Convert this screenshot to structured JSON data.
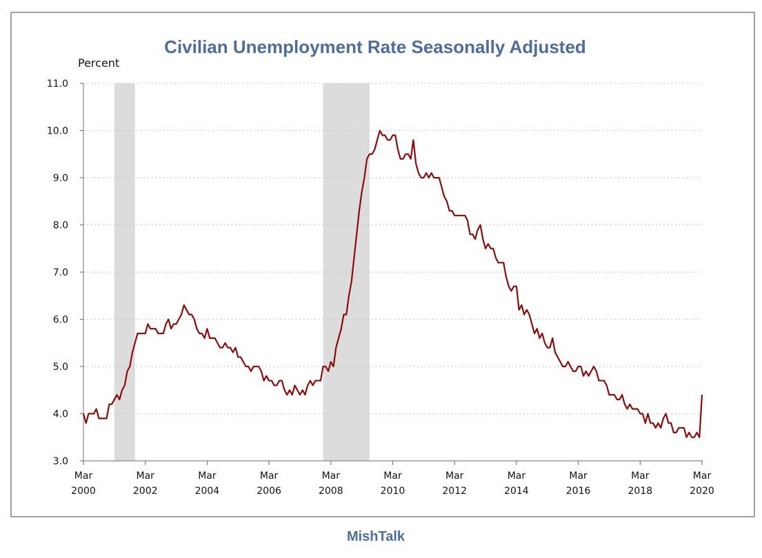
{
  "page": {
    "title": "Civilian Unemployment Rate Seasonally Adjusted",
    "brand": "MishTalk",
    "colors": {
      "title": "#4e6d9c",
      "series": "#8b0a0a",
      "recession": "#dcdcdc",
      "grid": "#bdbdbd"
    }
  },
  "chart_data": {
    "type": "line",
    "title": "Civilian Unemployment Rate Seasonally Adjusted",
    "ylabel": "Percent",
    "ylim": [
      3.0,
      11.0
    ],
    "yticks": [
      "3.0",
      "4.0",
      "5.0",
      "6.0",
      "7.0",
      "8.0",
      "9.0",
      "10.0",
      "11.0"
    ],
    "xlim": [
      "2000-03",
      "2020-03"
    ],
    "xticks": [
      {
        "month": "Mar",
        "year": "2000"
      },
      {
        "month": "Mar",
        "year": "2002"
      },
      {
        "month": "Mar",
        "year": "2004"
      },
      {
        "month": "Mar",
        "year": "2006"
      },
      {
        "month": "Mar",
        "year": "2008"
      },
      {
        "month": "Mar",
        "year": "2010"
      },
      {
        "month": "Mar",
        "year": "2012"
      },
      {
        "month": "Mar",
        "year": "2014"
      },
      {
        "month": "Mar",
        "year": "2016"
      },
      {
        "month": "Mar",
        "year": "2018"
      },
      {
        "month": "Mar",
        "year": "2020"
      }
    ],
    "grid": "horizontal dotted",
    "recessions": [
      {
        "start": "2001-03",
        "end": "2001-11"
      },
      {
        "start": "2007-12",
        "end": "2009-06"
      }
    ],
    "series": [
      {
        "start": "2000-03",
        "frequency": "monthly",
        "values": [
          4.0,
          3.8,
          4.0,
          4.0,
          4.0,
          4.1,
          3.9,
          3.9,
          3.9,
          3.9,
          4.2,
          4.2,
          4.3,
          4.4,
          4.3,
          4.5,
          4.6,
          4.9,
          5.0,
          5.3,
          5.5,
          5.7,
          5.7,
          5.7,
          5.7,
          5.9,
          5.8,
          5.8,
          5.8,
          5.7,
          5.7,
          5.7,
          5.9,
          6.0,
          5.8,
          5.9,
          5.9,
          6.0,
          6.1,
          6.3,
          6.2,
          6.1,
          6.1,
          6.0,
          5.8,
          5.7,
          5.7,
          5.6,
          5.8,
          5.6,
          5.6,
          5.6,
          5.5,
          5.4,
          5.4,
          5.5,
          5.4,
          5.4,
          5.3,
          5.4,
          5.2,
          5.2,
          5.1,
          5.0,
          5.0,
          4.9,
          5.0,
          5.0,
          5.0,
          4.9,
          4.7,
          4.8,
          4.7,
          4.7,
          4.6,
          4.6,
          4.7,
          4.7,
          4.5,
          4.4,
          4.5,
          4.4,
          4.6,
          4.5,
          4.4,
          4.5,
          4.4,
          4.6,
          4.7,
          4.6,
          4.7,
          4.7,
          4.7,
          5.0,
          5.0,
          4.9,
          5.1,
          5.0,
          5.4,
          5.6,
          5.8,
          6.1,
          6.1,
          6.5,
          6.8,
          7.3,
          7.8,
          8.3,
          8.7,
          9.0,
          9.4,
          9.5,
          9.5,
          9.6,
          9.8,
          10.0,
          9.9,
          9.9,
          9.8,
          9.8,
          9.9,
          9.9,
          9.6,
          9.4,
          9.4,
          9.5,
          9.5,
          9.4,
          9.8,
          9.3,
          9.1,
          9.0,
          9.0,
          9.1,
          9.0,
          9.1,
          9.0,
          9.0,
          9.0,
          8.8,
          8.6,
          8.5,
          8.3,
          8.3,
          8.2,
          8.2,
          8.2,
          8.2,
          8.2,
          8.1,
          7.8,
          7.8,
          7.7,
          7.9,
          8.0,
          7.7,
          7.5,
          7.6,
          7.5,
          7.5,
          7.3,
          7.2,
          7.2,
          7.2,
          6.9,
          6.7,
          6.6,
          6.7,
          6.7,
          6.2,
          6.3,
          6.1,
          6.2,
          6.1,
          5.9,
          5.7,
          5.8,
          5.6,
          5.7,
          5.5,
          5.4,
          5.4,
          5.6,
          5.3,
          5.2,
          5.1,
          5.0,
          5.0,
          5.1,
          5.0,
          4.9,
          4.9,
          5.0,
          5.0,
          4.8,
          4.9,
          4.8,
          4.9,
          5.0,
          4.9,
          4.7,
          4.7,
          4.7,
          4.6,
          4.4,
          4.4,
          4.4,
          4.3,
          4.3,
          4.4,
          4.2,
          4.1,
          4.2,
          4.1,
          4.1,
          4.1,
          4.0,
          4.0,
          3.8,
          4.0,
          3.8,
          3.8,
          3.7,
          3.8,
          3.7,
          3.9,
          4.0,
          3.8,
          3.8,
          3.6,
          3.6,
          3.7,
          3.7,
          3.7,
          3.5,
          3.6,
          3.5,
          3.5,
          3.6,
          3.5,
          4.4
        ]
      }
    ]
  }
}
